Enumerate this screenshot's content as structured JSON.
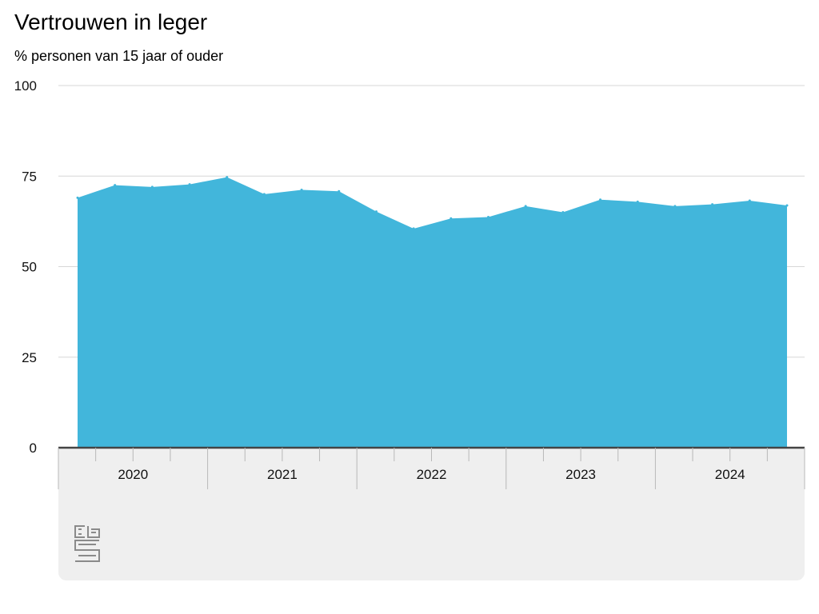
{
  "header": {
    "title": "Vertrouwen in leger",
    "subtitle": "% personen van 15 jaar of ouder"
  },
  "brand": {
    "logo_icon": "cbs-logo-icon"
  },
  "colors": {
    "area": "#42b6db",
    "grid": "#d7d7d7",
    "axis": "#444444",
    "panel": "#efefef"
  },
  "chart_data": {
    "type": "area",
    "title": "Vertrouwen in leger",
    "subtitle": "% personen van 15 jaar of ouder",
    "xlabel": "",
    "ylabel": "",
    "ylim": [
      0,
      100
    ],
    "yticks": [
      0,
      25,
      50,
      75,
      100
    ],
    "grid": true,
    "legend": "none",
    "year_labels": [
      "2020",
      "2021",
      "2022",
      "2023",
      "2024"
    ],
    "periods": [
      "2020 Q1",
      "2020 Q2",
      "2020 Q3",
      "2020 Q4",
      "2021 Q1",
      "2021 Q2",
      "2021 Q3",
      "2021 Q4",
      "2022 Q1",
      "2022 Q2",
      "2022 Q3",
      "2022 Q4",
      "2023 Q1",
      "2023 Q2",
      "2023 Q3",
      "2023 Q4",
      "2024 Q1",
      "2024 Q2",
      "2024 Q3",
      "2024 Q4"
    ],
    "series": [
      {
        "values": [
          69,
          72.5,
          72,
          72.7,
          74.7,
          70,
          71.2,
          70.8,
          65.2,
          60.5,
          63.3,
          63.7,
          66.7,
          65,
          68.5,
          67.9,
          66.7,
          67.2,
          68.2,
          66.9
        ]
      }
    ]
  }
}
